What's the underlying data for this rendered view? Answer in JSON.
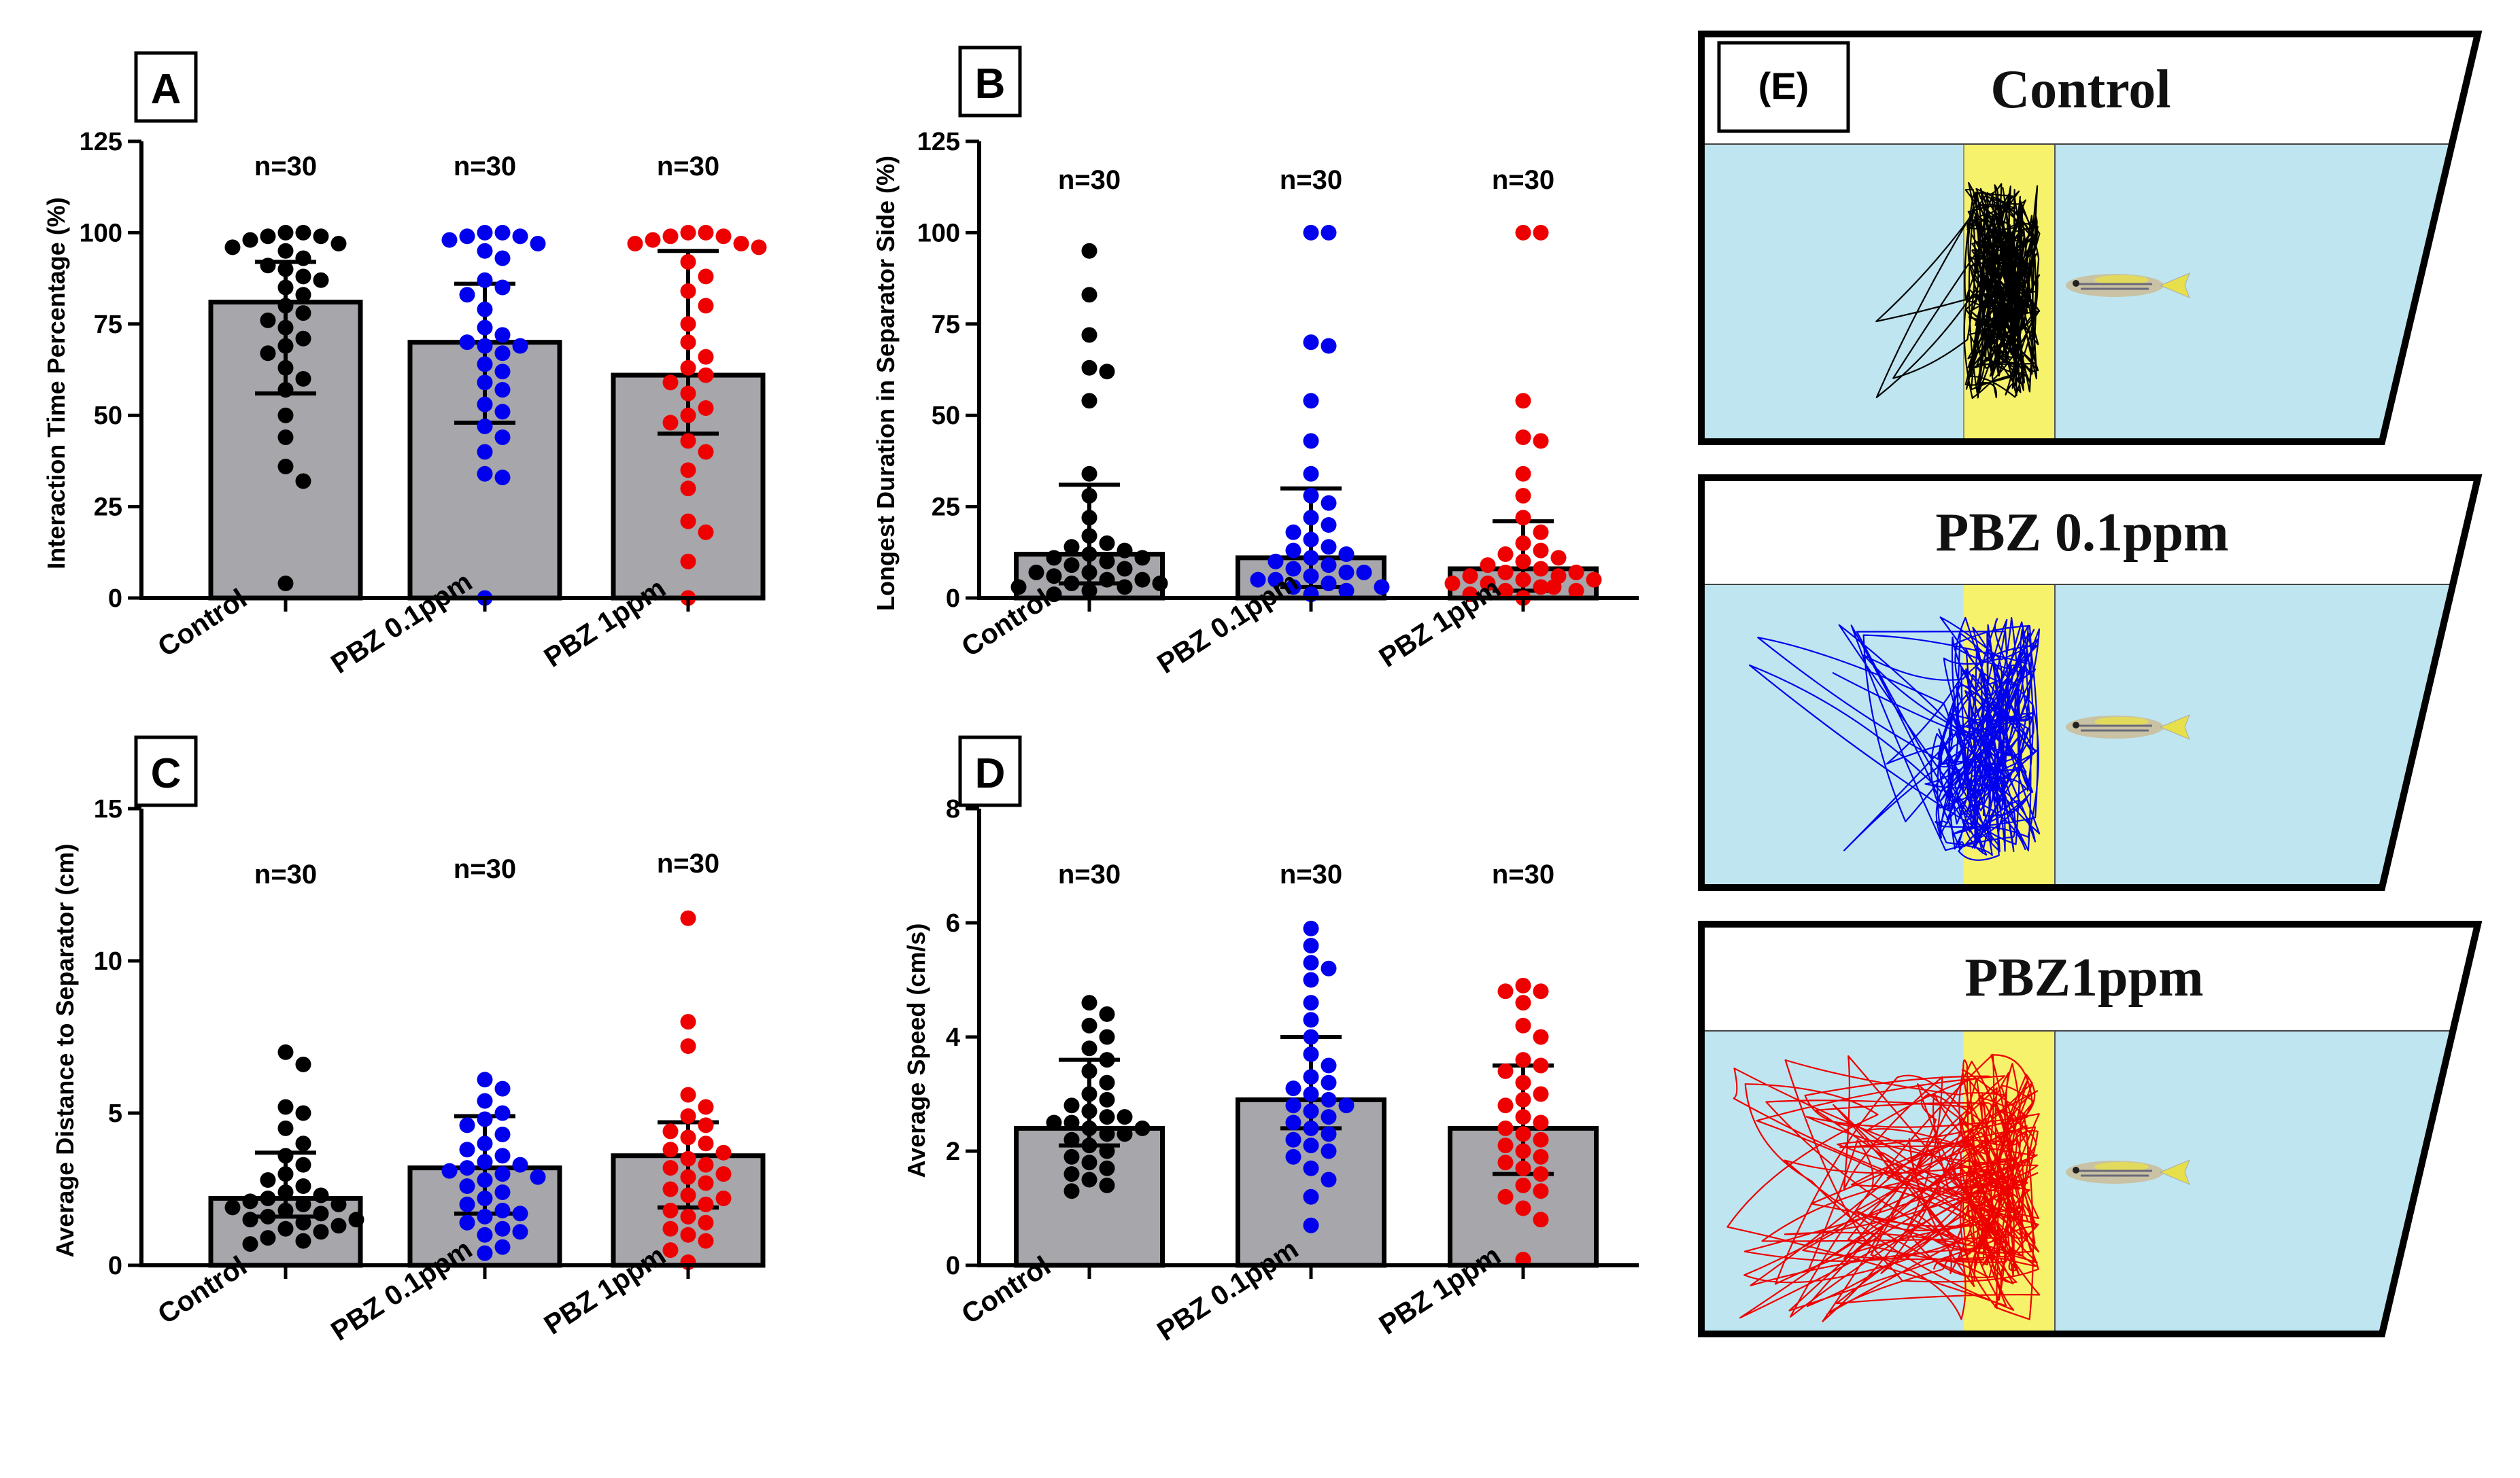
{
  "figure": {
    "panel_e_label": "(E)",
    "tracks": [
      {
        "title": "Control",
        "color": "#000000"
      },
      {
        "title": "PBZ 0.1ppm",
        "color": "#0000ee"
      },
      {
        "title": "PBZ1ppm",
        "color": "#ee0000"
      }
    ],
    "colors": {
      "bar": "#a7a6ab",
      "tank_water": "#bfe6f0",
      "separator": "#f7f26b",
      "groups": [
        "#000000",
        "#0000ee",
        "#ee0000"
      ]
    }
  },
  "chart_data": [
    {
      "type": "bar",
      "panel": "A",
      "title": "",
      "ylabel": "Interaction Time Percentage (%)",
      "categories": [
        "Control",
        "PBZ 0.1ppm",
        "PBZ 1ppm"
      ],
      "n_labels": [
        "n=30",
        "n=30",
        "n=30"
      ],
      "yticks": [
        0,
        25,
        50,
        75,
        100,
        125
      ],
      "ylim": [
        0,
        125
      ],
      "values": [
        81,
        70,
        61
      ],
      "error": [
        [
          56,
          92
        ],
        [
          48,
          86
        ],
        [
          45,
          95
        ]
      ],
      "points": [
        [
          100,
          100,
          99,
          99,
          98,
          97,
          96,
          95,
          93,
          91,
          90,
          88,
          87,
          85,
          83,
          80,
          78,
          76,
          74,
          71,
          69,
          67,
          63,
          60,
          57,
          50,
          44,
          36,
          32,
          4
        ],
        [
          100,
          100,
          99,
          99,
          98,
          97,
          95,
          93,
          87,
          85,
          83,
          79,
          74,
          72,
          70,
          69,
          69,
          67,
          64,
          62,
          59,
          57,
          53,
          51,
          47,
          44,
          40,
          34,
          33,
          0
        ],
        [
          100,
          100,
          99,
          99,
          98,
          97,
          97,
          96,
          92,
          88,
          84,
          80,
          75,
          70,
          66,
          63,
          61,
          59,
          56,
          52,
          50,
          48,
          43,
          40,
          35,
          30,
          21,
          18,
          10,
          0
        ]
      ]
    },
    {
      "type": "bar",
      "panel": "B",
      "title": "",
      "ylabel": "Longest  Duration in Separator Side (%)",
      "categories": [
        "Control",
        "PBZ 0.1ppm",
        "PBZ 1ppm"
      ],
      "n_labels": [
        "n=30",
        "n=30",
        "n=30"
      ],
      "yticks": [
        0,
        25,
        50,
        75,
        100,
        125
      ],
      "ylim": [
        0,
        125
      ],
      "values": [
        12,
        11,
        8
      ],
      "error": [
        [
          4,
          31
        ],
        [
          3,
          30
        ],
        [
          2,
          21
        ]
      ],
      "points": [
        [
          95,
          83,
          72,
          63,
          62,
          54,
          34,
          28,
          22,
          17,
          15,
          14,
          13,
          12,
          11,
          11,
          10,
          9,
          8,
          7,
          7,
          6,
          5,
          5,
          4,
          4,
          3,
          3,
          2,
          1
        ],
        [
          100,
          100,
          70,
          69,
          54,
          43,
          34,
          28,
          26,
          22,
          20,
          18,
          16,
          14,
          13,
          12,
          11,
          10,
          9,
          8,
          7,
          7,
          6,
          5,
          5,
          4,
          3,
          3,
          2,
          1
        ],
        [
          100,
          100,
          54,
          44,
          43,
          34,
          28,
          22,
          18,
          15,
          13,
          12,
          11,
          10,
          9,
          8,
          7,
          7,
          6,
          6,
          5,
          5,
          4,
          4,
          3,
          3,
          2,
          2,
          1,
          0
        ]
      ]
    },
    {
      "type": "bar",
      "panel": "C",
      "title": "",
      "ylabel": "Average Distance to Separator (cm)",
      "categories": [
        "Control",
        "PBZ 0.1ppm",
        "PBZ 1ppm"
      ],
      "n_labels": [
        "n=30",
        "n=30",
        "n=30"
      ],
      "yticks": [
        0,
        5,
        10,
        15
      ],
      "ylim": [
        0,
        15
      ],
      "values": [
        2.2,
        3.2,
        3.6
      ],
      "error": [
        [
          1.6,
          3.7
        ],
        [
          1.7,
          4.9
        ],
        [
          1.9,
          4.7
        ]
      ],
      "points": [
        [
          7.0,
          6.6,
          5.2,
          5.0,
          4.5,
          4.0,
          3.6,
          3.3,
          3.0,
          2.8,
          2.6,
          2.4,
          2.3,
          2.2,
          2.1,
          2.0,
          2.0,
          1.9,
          1.8,
          1.7,
          1.6,
          1.5,
          1.5,
          1.4,
          1.3,
          1.2,
          1.1,
          0.9,
          0.8,
          0.7
        ],
        [
          6.1,
          5.8,
          5.4,
          5.0,
          4.8,
          4.6,
          4.3,
          4.0,
          3.8,
          3.6,
          3.4,
          3.3,
          3.2,
          3.1,
          3.0,
          2.9,
          2.8,
          2.6,
          2.4,
          2.2,
          2.0,
          1.8,
          1.7,
          1.6,
          1.4,
          1.2,
          1.1,
          1.0,
          0.6,
          0.4
        ],
        [
          11.4,
          8.0,
          7.2,
          5.6,
          5.2,
          4.9,
          4.6,
          4.4,
          4.2,
          4.0,
          3.8,
          3.7,
          3.5,
          3.3,
          3.2,
          3.0,
          2.9,
          2.7,
          2.5,
          2.3,
          2.2,
          2.0,
          1.8,
          1.6,
          1.4,
          1.2,
          1.0,
          0.8,
          0.5,
          0.1
        ]
      ]
    },
    {
      "type": "bar",
      "panel": "D",
      "title": "",
      "ylabel": "Average Speed (cm/s)",
      "categories": [
        "Control",
        "PBZ 0.1ppm",
        "PBZ 1ppm"
      ],
      "n_labels": [
        "n=30",
        "n=30",
        "n=30"
      ],
      "yticks": [
        0,
        2,
        4,
        6,
        8
      ],
      "ylim": [
        0,
        8
      ],
      "values": [
        2.4,
        2.9,
        2.4
      ],
      "error": [
        [
          2.1,
          3.6
        ],
        [
          2.4,
          4.0
        ],
        [
          1.6,
          3.5
        ]
      ],
      "points": [
        [
          4.6,
          4.4,
          4.2,
          4.0,
          3.8,
          3.6,
          3.4,
          3.2,
          3.0,
          2.9,
          2.8,
          2.7,
          2.6,
          2.6,
          2.5,
          2.5,
          2.4,
          2.4,
          2.3,
          2.3,
          2.2,
          2.1,
          2.0,
          1.9,
          1.8,
          1.7,
          1.6,
          1.5,
          1.4,
          1.3
        ],
        [
          5.9,
          5.6,
          5.3,
          5.2,
          5.0,
          4.6,
          4.3,
          4.0,
          3.7,
          3.5,
          3.3,
          3.2,
          3.1,
          3.0,
          2.9,
          2.8,
          2.8,
          2.7,
          2.6,
          2.5,
          2.4,
          2.3,
          2.2,
          2.1,
          2.0,
          1.9,
          1.7,
          1.5,
          1.2,
          0.7
        ],
        [
          4.9,
          4.8,
          4.8,
          4.6,
          4.2,
          4.0,
          3.6,
          3.5,
          3.4,
          3.2,
          3.0,
          2.9,
          2.8,
          2.6,
          2.5,
          2.4,
          2.3,
          2.2,
          2.1,
          2.0,
          1.9,
          1.8,
          1.7,
          1.6,
          1.4,
          1.3,
          1.2,
          1.0,
          0.8,
          0.1
        ]
      ]
    }
  ]
}
